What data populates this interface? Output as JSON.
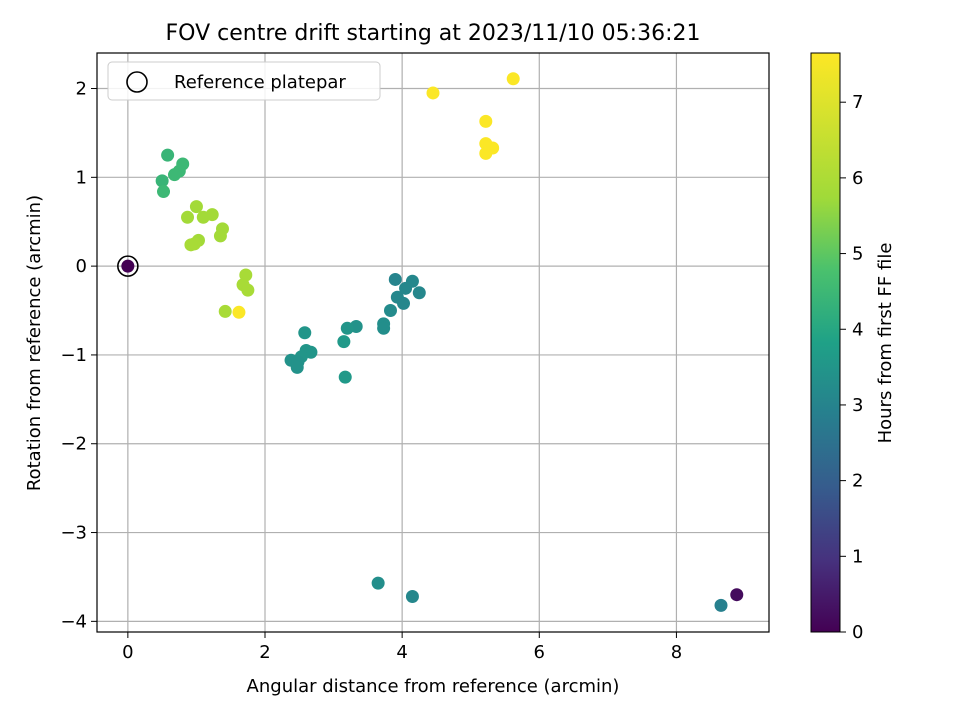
{
  "chart_data": {
    "type": "scatter",
    "title": "FOV centre drift starting at 2023/11/10 05:36:21",
    "xlabel": "Angular distance from reference (arcmin)",
    "ylabel": "Rotation from reference (arcmin)",
    "xlim": [
      -0.45,
      9.35
    ],
    "ylim": [
      -4.12,
      2.4
    ],
    "x_ticks": [
      0,
      2,
      4,
      6,
      8
    ],
    "x_tick_labels": [
      "0",
      "2",
      "4",
      "6",
      "8"
    ],
    "y_ticks": [
      -4,
      -3,
      -2,
      -1,
      0,
      1,
      2
    ],
    "y_tick_labels": [
      "−4",
      "−3",
      "−2",
      "−1",
      "0",
      "1",
      "2"
    ],
    "grid": true,
    "legend": {
      "placement": "top-left",
      "entries": [
        "Reference platepar"
      ]
    },
    "reference_point": {
      "x": 0,
      "y": 0,
      "hours": 0
    },
    "colorbar": {
      "label": "Hours from first FF file",
      "colormap": "viridis",
      "range": [
        0,
        7.65
      ],
      "ticks": [
        0,
        1,
        2,
        3,
        4,
        5,
        6,
        7
      ],
      "tick_labels": [
        "0",
        "1",
        "2",
        "3",
        "4",
        "5",
        "6",
        "7"
      ]
    },
    "series": [
      {
        "points": [
          {
            "x": 8.88,
            "y": -3.7,
            "c": 0.2
          },
          {
            "x": 8.65,
            "y": -3.82,
            "c": 2.9
          },
          {
            "x": 4.15,
            "y": -3.72,
            "c": 3.1
          },
          {
            "x": 3.65,
            "y": -3.57,
            "c": 3.3
          },
          {
            "x": 3.9,
            "y": -0.15,
            "c": 3.0
          },
          {
            "x": 3.93,
            "y": -0.35,
            "c": 3.1
          },
          {
            "x": 4.02,
            "y": -0.42,
            "c": 3.1
          },
          {
            "x": 4.05,
            "y": -0.25,
            "c": 3.1
          },
          {
            "x": 4.15,
            "y": -0.17,
            "c": 3.1
          },
          {
            "x": 4.25,
            "y": -0.3,
            "c": 3.1
          },
          {
            "x": 3.83,
            "y": -0.5,
            "c": 3.2
          },
          {
            "x": 3.73,
            "y": -0.65,
            "c": 3.3
          },
          {
            "x": 3.73,
            "y": -0.7,
            "c": 3.3
          },
          {
            "x": 3.33,
            "y": -0.68,
            "c": 3.4
          },
          {
            "x": 3.2,
            "y": -0.7,
            "c": 3.5
          },
          {
            "x": 3.15,
            "y": -0.85,
            "c": 3.6
          },
          {
            "x": 3.17,
            "y": -1.25,
            "c": 3.6
          },
          {
            "x": 2.58,
            "y": -0.75,
            "c": 3.5
          },
          {
            "x": 2.6,
            "y": -0.95,
            "c": 3.5
          },
          {
            "x": 2.67,
            "y": -0.97,
            "c": 3.5
          },
          {
            "x": 2.53,
            "y": -1.02,
            "c": 3.5
          },
          {
            "x": 2.38,
            "y": -1.06,
            "c": 3.4
          },
          {
            "x": 2.48,
            "y": -1.08,
            "c": 3.4
          },
          {
            "x": 2.47,
            "y": -1.14,
            "c": 3.4
          },
          {
            "x": 0.58,
            "y": 1.25,
            "c": 4.4
          },
          {
            "x": 0.8,
            "y": 1.15,
            "c": 4.5
          },
          {
            "x": 0.75,
            "y": 1.07,
            "c": 4.5
          },
          {
            "x": 0.68,
            "y": 1.03,
            "c": 4.5
          },
          {
            "x": 0.5,
            "y": 0.96,
            "c": 4.4
          },
          {
            "x": 0.52,
            "y": 0.84,
            "c": 4.5
          },
          {
            "x": 1.0,
            "y": 0.67,
            "c": 5.8
          },
          {
            "x": 0.87,
            "y": 0.55,
            "c": 5.8
          },
          {
            "x": 1.1,
            "y": 0.55,
            "c": 5.8
          },
          {
            "x": 1.23,
            "y": 0.58,
            "c": 5.8
          },
          {
            "x": 1.38,
            "y": 0.42,
            "c": 5.8
          },
          {
            "x": 1.35,
            "y": 0.34,
            "c": 5.8
          },
          {
            "x": 1.03,
            "y": 0.29,
            "c": 5.8
          },
          {
            "x": 0.97,
            "y": 0.25,
            "c": 5.9
          },
          {
            "x": 0.92,
            "y": 0.24,
            "c": 5.9
          },
          {
            "x": 1.72,
            "y": -0.1,
            "c": 5.9
          },
          {
            "x": 1.68,
            "y": -0.21,
            "c": 5.9
          },
          {
            "x": 1.75,
            "y": -0.27,
            "c": 5.9
          },
          {
            "x": 1.42,
            "y": -0.51,
            "c": 5.9
          },
          {
            "x": 1.62,
            "y": -0.52,
            "c": 7.6
          },
          {
            "x": 4.45,
            "y": 1.95,
            "c": 7.6
          },
          {
            "x": 5.62,
            "y": 2.11,
            "c": 7.6
          },
          {
            "x": 5.22,
            "y": 1.63,
            "c": 7.6
          },
          {
            "x": 5.22,
            "y": 1.38,
            "c": 7.6
          },
          {
            "x": 5.32,
            "y": 1.33,
            "c": 7.6
          },
          {
            "x": 5.22,
            "y": 1.27,
            "c": 7.6
          }
        ]
      }
    ]
  }
}
